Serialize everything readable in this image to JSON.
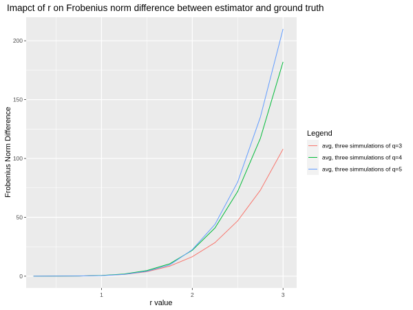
{
  "chart_data": {
    "type": "line",
    "title": "Imapct of r on Frobenius norm difference between estimator and ground truth",
    "xlabel": "r value",
    "ylabel": "Frobenius Norm Difference",
    "xlim": [
      0.17,
      3.15
    ],
    "ylim": [
      -10,
      220
    ],
    "xticks": [
      1,
      2,
      3
    ],
    "yticks": [
      0,
      50,
      100,
      150,
      200
    ],
    "grid": true,
    "legend": {
      "title": "Legend",
      "placement": "right"
    },
    "x": [
      0.25,
      0.5,
      0.75,
      1.0,
      1.25,
      1.5,
      1.75,
      2.0,
      2.25,
      2.5,
      2.75,
      3.0
    ],
    "series": [
      {
        "name": "avg, three simmulations of q=3",
        "color": "#F8766D",
        "values": [
          0,
          0.05,
          0.2,
          0.6,
          1.5,
          3.8,
          8.5,
          16.5,
          28.5,
          47,
          73,
          108
        ]
      },
      {
        "name": "avg, three simmulations of q=4",
        "color": "#00BA38",
        "values": [
          0,
          0.05,
          0.2,
          0.6,
          1.8,
          4.8,
          10.5,
          22,
          41,
          72,
          117,
          182
        ]
      },
      {
        "name": "avg, three simmulations of q=5",
        "color": "#619CFF",
        "values": [
          0,
          0.05,
          0.2,
          0.5,
          1.6,
          4.2,
          9.5,
          22.5,
          44,
          80,
          135,
          210
        ]
      }
    ]
  }
}
